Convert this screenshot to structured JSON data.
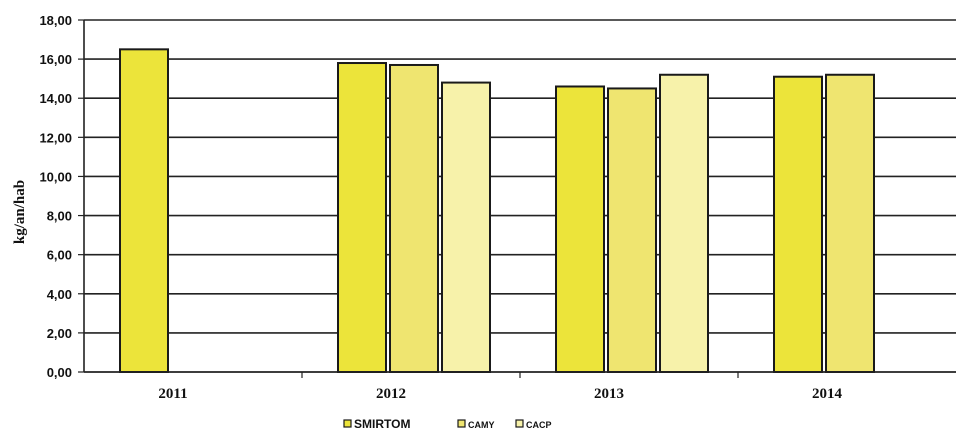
{
  "chart_data": {
    "type": "bar",
    "title": "",
    "xlabel": "",
    "ylabel": "kg/an/hab",
    "ylim": [
      0,
      18
    ],
    "y_ticks": [
      "0,00",
      "2,00",
      "4,00",
      "6,00",
      "8,00",
      "10,00",
      "12,00",
      "14,00",
      "16,00",
      "18,00"
    ],
    "categories": [
      "2011",
      "2012",
      "2013",
      "2014"
    ],
    "grid": true,
    "legend_position": "bottom",
    "series": [
      {
        "name": "SMIRTOM",
        "color": "#ece43a",
        "values": [
          16.5,
          15.8,
          14.6,
          15.1
        ]
      },
      {
        "name": "CAMY",
        "color": "#efe570",
        "values": [
          null,
          15.7,
          14.5,
          15.2
        ]
      },
      {
        "name": "CACP",
        "color": "#f7f2aa",
        "values": [
          null,
          14.8,
          15.2,
          null
        ]
      }
    ]
  }
}
